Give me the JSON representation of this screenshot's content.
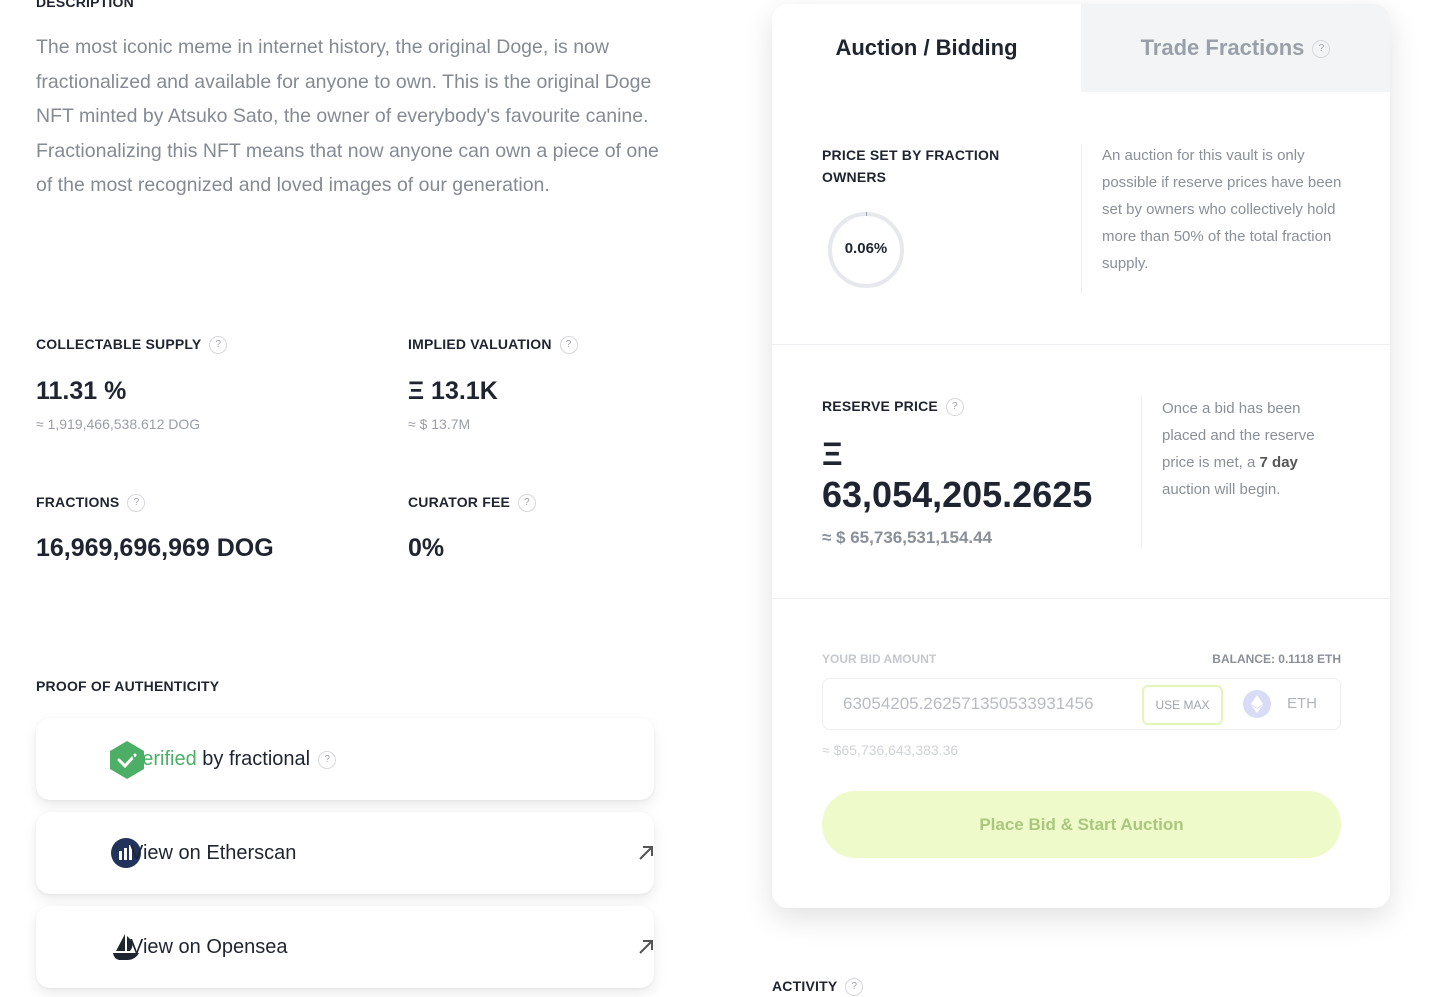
{
  "help": "?",
  "description": {
    "heading": "DESCRIPTION",
    "text": "The most iconic meme in internet history, the original Doge, is now fractionalized and available for anyone to own. This is the original Doge NFT minted by Atsuko Sato, the owner of everybody's favourite canine. Fractionalizing this NFT means that now anyone can own a piece of one of the most recognized and loved images of our generation."
  },
  "stats": [
    {
      "label": "COLLECTABLE SUPPLY",
      "value": "11.31 %",
      "sub": "≈ 1,919,466,538.612 DOG"
    },
    {
      "label": "IMPLIED VALUATION",
      "value": "Ξ 13.1K",
      "sub": "≈ $ 13.7M"
    },
    {
      "label": "FRACTIONS",
      "value": "16,969,696,969 DOG"
    },
    {
      "label": "CURATOR FEE",
      "value": "0%"
    }
  ],
  "proof": {
    "heading": "PROOF OF AUTHENTICITY",
    "verified": "Verified",
    "verified_by": "by fractional",
    "links": [
      "View on Etherscan",
      "View on Opensea"
    ]
  },
  "tabs": [
    "Auction / Bidding",
    "Trade Fractions"
  ],
  "price_set": {
    "label": "PRICE SET BY FRACTION OWNERS",
    "percent": "0.06%",
    "note": "An auction for this vault is only possible if reserve prices have been set by owners who collectively hold more than 50% of the total fraction supply."
  },
  "reserve": {
    "label": "RESERVE PRICE",
    "symbol": "Ξ",
    "value": "63,054,205.2625",
    "usd": "≈ $ 65,736,531,154.44",
    "note_before": "Once a bid has been placed and the reserve price is met, a ",
    "note_bold": "7 day",
    "note_after": " auction will begin."
  },
  "bid": {
    "label": "YOUR BID AMOUNT",
    "balance": "BALANCE: 0.1118 ETH",
    "input": "63054205.262571350533931456",
    "use_max": "USE MAX",
    "currency": "ETH",
    "usd": "≈ $65,736,643,383.36",
    "button": "Place Bid & Start Auction"
  },
  "activity": {
    "heading": "ACTIVITY"
  }
}
